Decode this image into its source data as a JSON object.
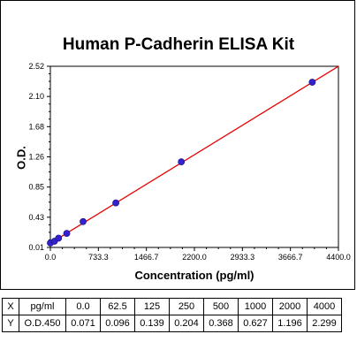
{
  "chart_data": {
    "type": "scatter",
    "title": "Human P-Cadherin ELISA Kit",
    "xlabel": "Concentration (pg/ml)",
    "ylabel": "O.D.",
    "xlim": [
      0,
      4400
    ],
    "ylim": [
      0.01,
      2.52
    ],
    "x_ticks": [
      "0.0",
      "733.3",
      "1466.7",
      "2200.0",
      "2933.3",
      "3666.7",
      "4400.0"
    ],
    "y_ticks": [
      "0.01",
      "0.43",
      "0.85",
      "1.26",
      "1.68",
      "2.10",
      "2.52"
    ],
    "x": [
      0,
      62.5,
      125,
      250,
      500,
      1000,
      2000,
      4000
    ],
    "y": [
      0.071,
      0.096,
      0.139,
      0.204,
      0.368,
      0.627,
      1.196,
      2.299
    ],
    "fit_line": {
      "x": [
        0,
        4400
      ],
      "y": [
        0.068,
        2.52
      ]
    },
    "grid": false,
    "colors": {
      "points": "#3322cc",
      "line": "#e60000"
    }
  },
  "table": {
    "row_x": [
      "X",
      "pg/ml",
      "0.0",
      "62.5",
      "125",
      "250",
      "500",
      "1000",
      "2000",
      "4000"
    ],
    "row_y": [
      "Y",
      "O.D.450",
      "0.071",
      "0.096",
      "0.139",
      "0.204",
      "0.368",
      "0.627",
      "1.196",
      "2.299"
    ]
  }
}
